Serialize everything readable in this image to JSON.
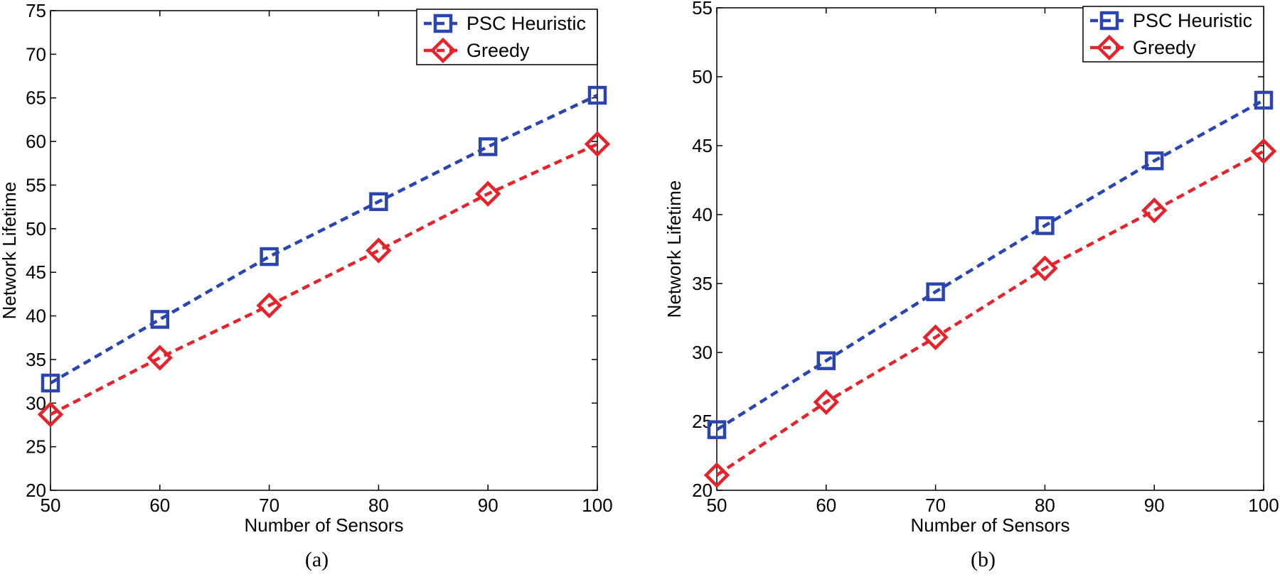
{
  "colors": {
    "psc": "#2a44b0",
    "greedy": "#e8222b",
    "axis": "#000000",
    "background": "#ffffff"
  },
  "chart_data": [
    {
      "type": "line",
      "caption": "(a)",
      "title": "",
      "xlabel": "Number of Sensors",
      "ylabel": "Network Lifetime",
      "xlim": [
        50,
        100
      ],
      "ylim": [
        20,
        75
      ],
      "xticks": [
        50,
        60,
        70,
        80,
        90,
        100
      ],
      "yticks": [
        20,
        25,
        30,
        35,
        40,
        45,
        50,
        55,
        60,
        65,
        70,
        75
      ],
      "grid": false,
      "legend_position": "top-right",
      "x": [
        50,
        60,
        70,
        80,
        90,
        100
      ],
      "series": [
        {
          "name": "PSC Heuristic",
          "marker": "square",
          "color_key": "psc",
          "values": [
            32.3,
            39.6,
            46.8,
            53.1,
            59.4,
            65.3
          ]
        },
        {
          "name": "Greedy",
          "marker": "diamond",
          "color_key": "greedy",
          "values": [
            28.7,
            35.2,
            41.2,
            47.5,
            54.0,
            59.7
          ]
        }
      ]
    },
    {
      "type": "line",
      "caption": "(b)",
      "title": "",
      "xlabel": "Number of Sensors",
      "ylabel": "Network Lifetime",
      "xlim": [
        50,
        100
      ],
      "ylim": [
        20,
        55
      ],
      "xticks": [
        50,
        60,
        70,
        80,
        90,
        100
      ],
      "yticks": [
        20,
        25,
        30,
        35,
        40,
        45,
        50,
        55
      ],
      "grid": false,
      "legend_position": "top-right",
      "x": [
        50,
        60,
        70,
        80,
        90,
        100
      ],
      "series": [
        {
          "name": "PSC Heuristic",
          "marker": "square",
          "color_key": "psc",
          "values": [
            24.4,
            29.4,
            34.4,
            39.2,
            43.9,
            48.3
          ]
        },
        {
          "name": "Greedy",
          "marker": "diamond",
          "color_key": "greedy",
          "values": [
            21.1,
            26.4,
            31.1,
            36.1,
            40.3,
            44.6
          ]
        }
      ]
    }
  ]
}
